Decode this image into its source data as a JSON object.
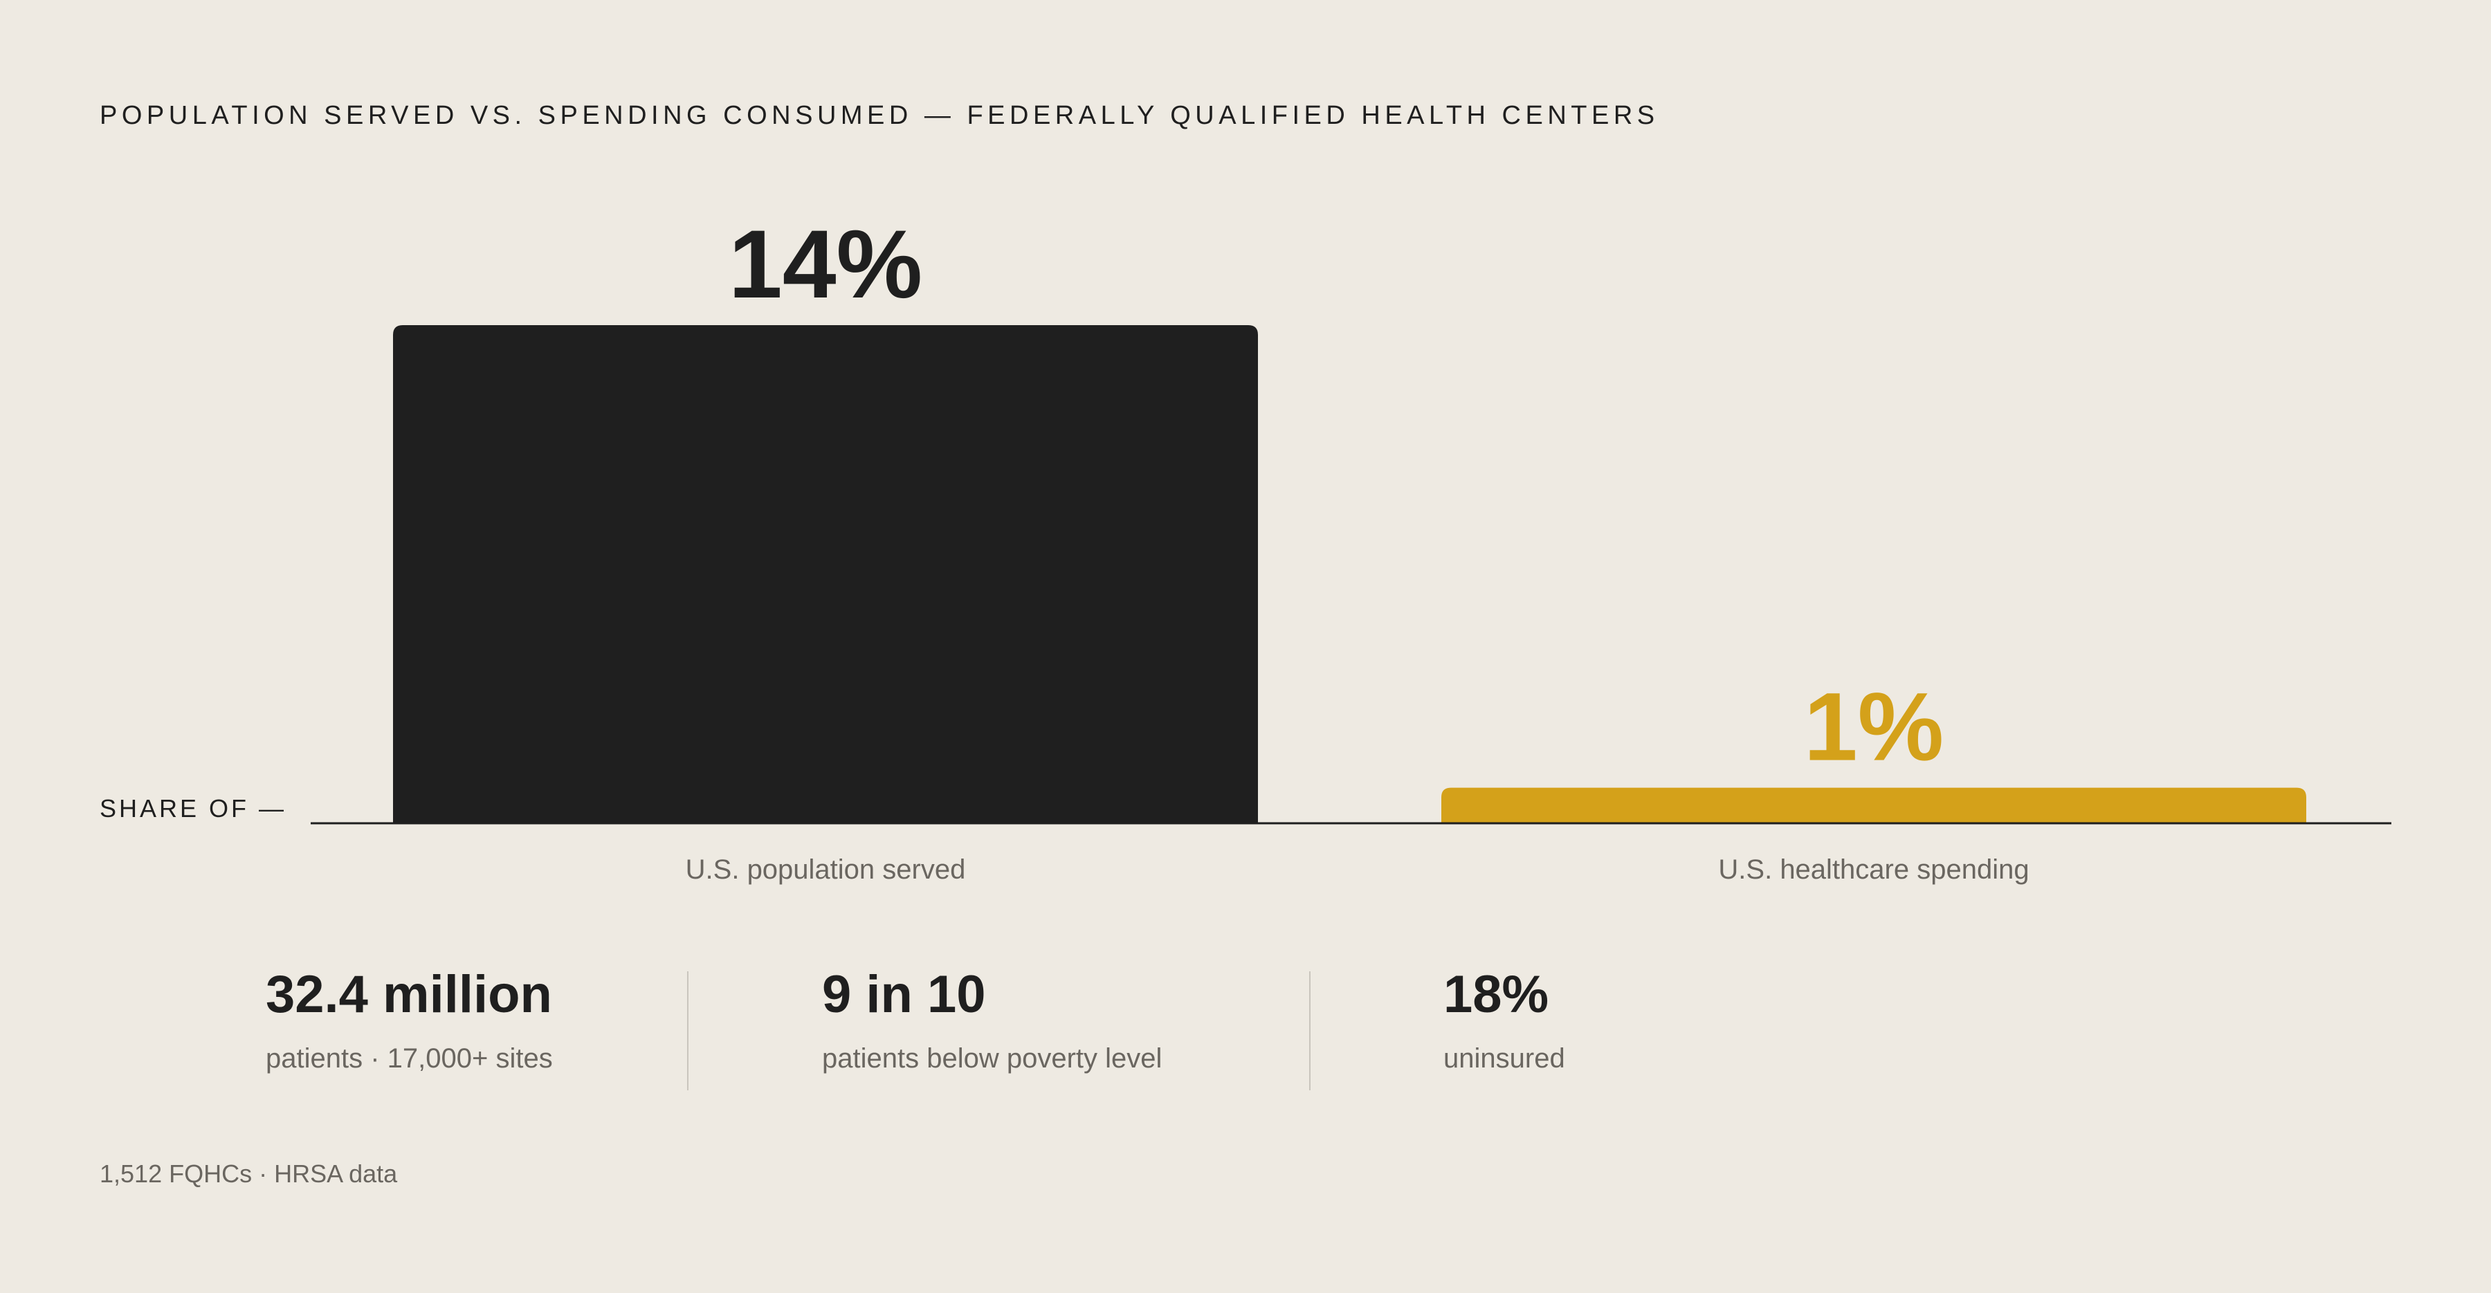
{
  "header": {
    "title": "POPULATION SERVED VS. SPENDING CONSUMED — FEDERALLY QUALIFIED HEALTH CENTERS"
  },
  "axis": {
    "share_label": "SHARE OF —"
  },
  "chart_data": {
    "type": "bar",
    "title": "POPULATION SERVED VS. SPENDING CONSUMED — FEDERALLY QUALIFIED HEALTH CENTERS",
    "categories": [
      "U.S. population served",
      "U.S. healthcare spending"
    ],
    "values": [
      14,
      1
    ],
    "value_labels": [
      "14%",
      "1%"
    ],
    "colors": [
      "#1F1F1F",
      "#D4A11A"
    ],
    "unit": "%",
    "ylim": [
      0,
      14
    ],
    "grid": false,
    "legend": "none"
  },
  "stats": [
    {
      "value": "32.4 million",
      "label": "patients · 17,000+ sites"
    },
    {
      "value": "9 in 10",
      "label": "patients below poverty level"
    },
    {
      "value": "18%",
      "label": "uninsured"
    }
  ],
  "footnote": "1,512 FQHCs · HRSA data",
  "colors": {
    "background": "#EEEAE2",
    "primary_bar": "#1F1F1F",
    "accent_bar": "#D4A11A",
    "muted_text": "#6A6660"
  }
}
